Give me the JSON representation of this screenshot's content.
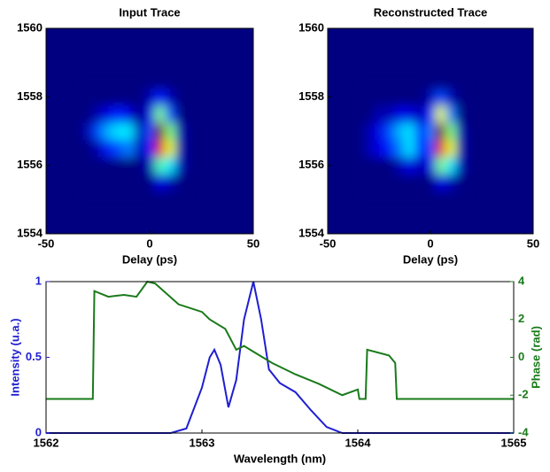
{
  "chart_data": [
    {
      "type": "heatmap",
      "title": "Input Trace",
      "x_label": "Delay (ps)",
      "colormap": "jet",
      "x": [
        -30,
        -25,
        -20,
        -15,
        -10,
        -5,
        0,
        5,
        10,
        15
      ],
      "y": [
        1555.5,
        1556.0,
        1556.5,
        1557.0,
        1557.5,
        1558.0
      ],
      "z": [
        [
          0,
          0,
          0,
          0,
          0,
          0,
          0,
          0.1,
          0.05,
          0
        ],
        [
          0,
          0,
          0,
          0,
          0,
          0,
          0.05,
          0.45,
          0.35,
          0.05
        ],
        [
          0,
          0.05,
          0.15,
          0.2,
          0.25,
          0.05,
          0.15,
          0.9,
          0.6,
          0.05
        ],
        [
          0.05,
          0.2,
          0.3,
          0.35,
          0.35,
          0.05,
          0.2,
          1.0,
          0.5,
          0.05
        ],
        [
          0,
          0.05,
          0.1,
          0.15,
          0.1,
          0,
          0.1,
          0.5,
          0.2,
          0
        ],
        [
          0,
          0,
          0,
          0,
          0,
          0,
          0.05,
          0.15,
          0.05,
          0
        ]
      ],
      "xlim": [
        -50,
        50
      ],
      "xticks": [
        -50,
        0,
        50
      ],
      "ylim": [
        1554,
        1560
      ],
      "yticks": [
        1554,
        1556,
        1558,
        1560
      ]
    },
    {
      "type": "heatmap",
      "title": "Reconstructed Trace",
      "x_label": "Delay (ps)",
      "colormap": "jet",
      "x": [
        -30,
        -25,
        -20,
        -15,
        -10,
        -5,
        0,
        5,
        10,
        15
      ],
      "y": [
        1555.5,
        1556.0,
        1556.5,
        1557.0,
        1557.5,
        1558.0
      ],
      "z": [
        [
          0,
          0,
          0,
          0,
          0,
          0,
          0,
          0.1,
          0.05,
          0
        ],
        [
          0,
          0,
          0,
          0.05,
          0.1,
          0.05,
          0.1,
          0.5,
          0.35,
          0.05
        ],
        [
          0.05,
          0.1,
          0.15,
          0.25,
          0.35,
          0.15,
          0.2,
          0.9,
          0.6,
          0.05
        ],
        [
          0.05,
          0.1,
          0.2,
          0.3,
          0.35,
          0.15,
          0.25,
          1.0,
          0.5,
          0.05
        ],
        [
          0,
          0.05,
          0.05,
          0.1,
          0.1,
          0.05,
          0.15,
          0.6,
          0.25,
          0
        ],
        [
          0,
          0,
          0,
          0,
          0,
          0,
          0.05,
          0.2,
          0.05,
          0
        ]
      ],
      "xlim": [
        -50,
        50
      ],
      "xticks": [
        -50,
        0,
        50
      ],
      "ylim": [
        1554,
        1560
      ],
      "yticks": [
        1554,
        1556,
        1558,
        1560
      ]
    },
    {
      "type": "line",
      "x_label": "Wavelength (nm)",
      "y_label": "Intensity (u.a.)",
      "y2_label": "Phase (rad)",
      "xlim": [
        1562,
        1565
      ],
      "xticks": [
        1562,
        1563,
        1564,
        1565
      ],
      "ylim": [
        0,
        1
      ],
      "yticks": [
        0,
        0.5,
        1
      ],
      "y2lim": [
        -4,
        4
      ],
      "y2ticks": [
        -4,
        -2,
        0,
        2,
        4
      ],
      "y_color": "#1f1fd0",
      "y2_color": "#1a7a1a",
      "series": [
        {
          "color": "#1f1fd0",
          "x": [
            1562,
            1562.8,
            1562.9,
            1563.0,
            1563.05,
            1563.08,
            1563.12,
            1563.17,
            1563.22,
            1563.27,
            1563.33,
            1563.38,
            1563.43,
            1563.5,
            1563.6,
            1563.7,
            1563.8,
            1563.9,
            1565
          ],
          "values": [
            0,
            0,
            0.03,
            0.3,
            0.5,
            0.55,
            0.45,
            0.17,
            0.35,
            0.75,
            1.0,
            0.75,
            0.42,
            0.33,
            0.27,
            0.15,
            0.04,
            0,
            0
          ]
        },
        {
          "color": "#1a7a1a",
          "axis": "y2",
          "x": [
            1562,
            1562.3,
            1562.31,
            1562.4,
            1562.5,
            1562.58,
            1562.65,
            1562.7,
            1562.85,
            1563.0,
            1563.05,
            1563.15,
            1563.22,
            1563.27,
            1563.33,
            1563.45,
            1563.6,
            1563.75,
            1563.9,
            1564.0,
            1564.01,
            1564.05,
            1564.06,
            1564.2,
            1564.24,
            1564.25,
            1565
          ],
          "values": [
            -2.2,
            -2.2,
            3.5,
            3.2,
            3.3,
            3.2,
            4,
            3.9,
            2.8,
            2.4,
            2.0,
            1.5,
            0.4,
            0.6,
            0.3,
            -0.3,
            -0.9,
            -1.4,
            -2.0,
            -1.7,
            -2.2,
            -2.2,
            0.4,
            0.1,
            -0.3,
            -2.2,
            -2.2
          ]
        }
      ]
    }
  ]
}
